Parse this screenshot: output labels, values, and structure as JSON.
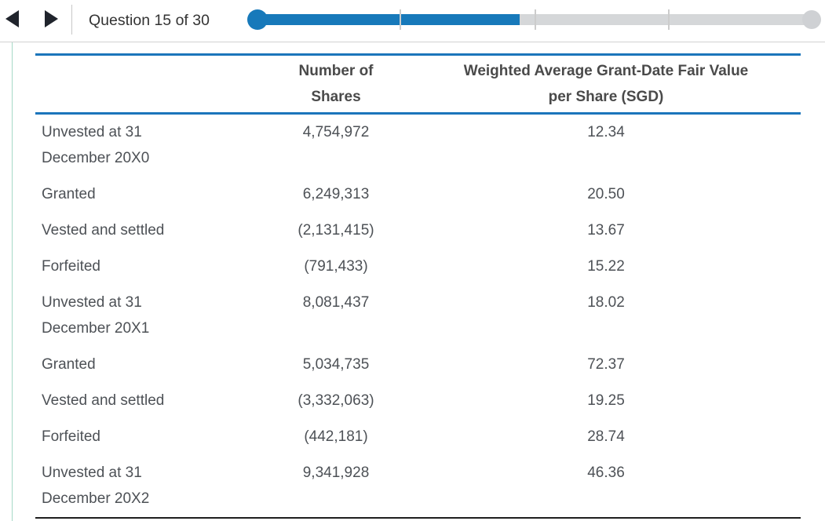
{
  "toolbar": {
    "question_label": "Question 15 of 30",
    "progress": {
      "current_question": 15,
      "total_questions": 30,
      "fill_percent": 47.3,
      "tick_positions_percent": [
        25,
        50,
        75
      ]
    }
  },
  "colors": {
    "accent_blue": "#1779ba",
    "table_rule_blue": "#1b75bb",
    "track_gray": "#d5d7d9",
    "left_rule_teal": "#a6d9c6",
    "bottom_rule_dark": "#1f1f1f",
    "body_text": "#4d5156"
  },
  "table": {
    "headers": {
      "col1": "",
      "col2_line1": "Number of",
      "col2_line2": "Shares",
      "col3_line1": "Weighted Average Grant-Date Fair Value",
      "col3_line2": "per Share (SGD)"
    },
    "rows": [
      {
        "label": "Unvested at 31 December 20X0",
        "shares": "4,754,972",
        "fair_value": "12.34"
      },
      {
        "label": "Granted",
        "shares": "6,249,313",
        "fair_value": "20.50"
      },
      {
        "label": "Vested and settled",
        "shares": "(2,131,415)",
        "fair_value": "13.67"
      },
      {
        "label": "Forfeited",
        "shares": "(791,433)",
        "fair_value": "15.22"
      },
      {
        "label": "Unvested at 31 December 20X1",
        "shares": "8,081,437",
        "fair_value": "18.02"
      },
      {
        "label": "Granted",
        "shares": "5,034,735",
        "fair_value": "72.37"
      },
      {
        "label": "Vested and settled",
        "shares": "(3,332,063)",
        "fair_value": "19.25"
      },
      {
        "label": "Forfeited",
        "shares": "(442,181)",
        "fair_value": "28.74"
      },
      {
        "label": "Unvested at 31 December 20X2",
        "shares": "9,341,928",
        "fair_value": "46.36"
      }
    ]
  }
}
